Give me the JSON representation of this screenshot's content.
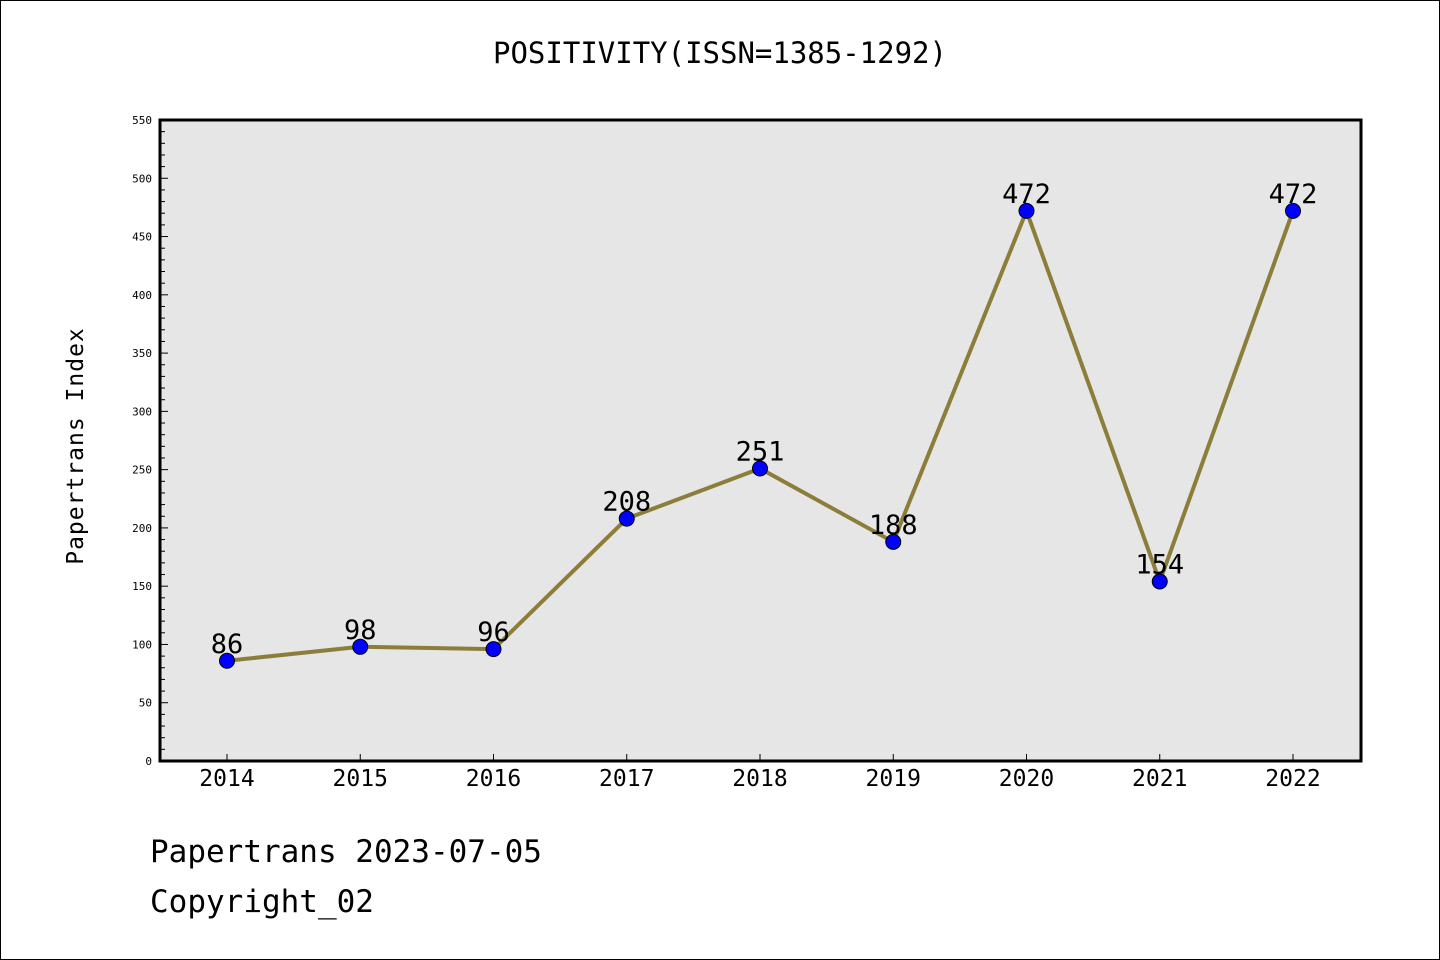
{
  "chart_data": {
    "type": "line",
    "title": "POSITIVITY(ISSN=1385-1292)",
    "xlabel": "",
    "ylabel": "Papertrans Index",
    "categories": [
      "2014",
      "2015",
      "2016",
      "2017",
      "2018",
      "2019",
      "2020",
      "2021",
      "2022"
    ],
    "values": [
      86,
      98,
      96,
      208,
      251,
      188,
      472,
      154,
      472
    ],
    "ylim": [
      0,
      550
    ],
    "yticks": [
      0,
      50,
      100,
      150,
      200,
      250,
      300,
      350,
      400,
      450,
      500,
      550
    ],
    "grid": false,
    "legend": "none",
    "colors": {
      "line": "#8c7e3a",
      "marker": "#0000ff",
      "plot_bg": "#e6e6e6"
    }
  },
  "footer": {
    "line1": "Papertrans 2023-07-05",
    "line2": "Copyright_02"
  }
}
